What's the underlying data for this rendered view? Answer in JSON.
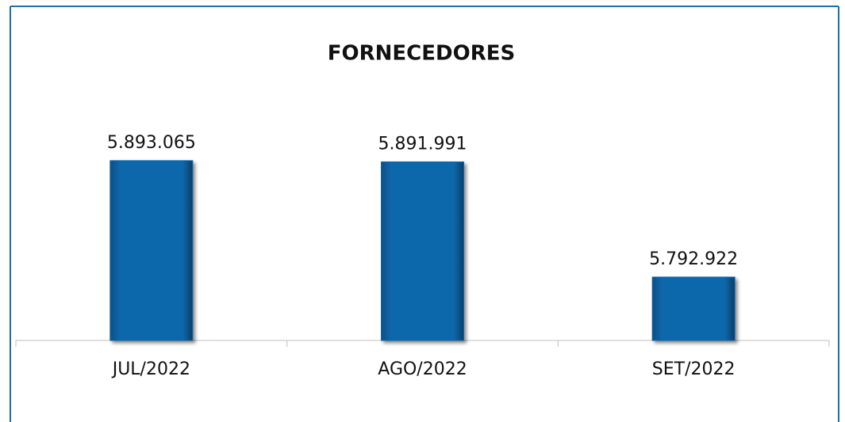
{
  "chart_data": {
    "type": "bar",
    "title": "FORNECEDORES",
    "categories": [
      "JUL/2022",
      "AGO/2022",
      "SET/2022"
    ],
    "values": [
      5893065,
      5891991,
      5792922
    ],
    "value_labels": [
      "5.893.065",
      "5.891.991",
      "5.792.922"
    ],
    "color": "#0e68ab",
    "ylim": [
      5738400,
      5910000
    ]
  }
}
